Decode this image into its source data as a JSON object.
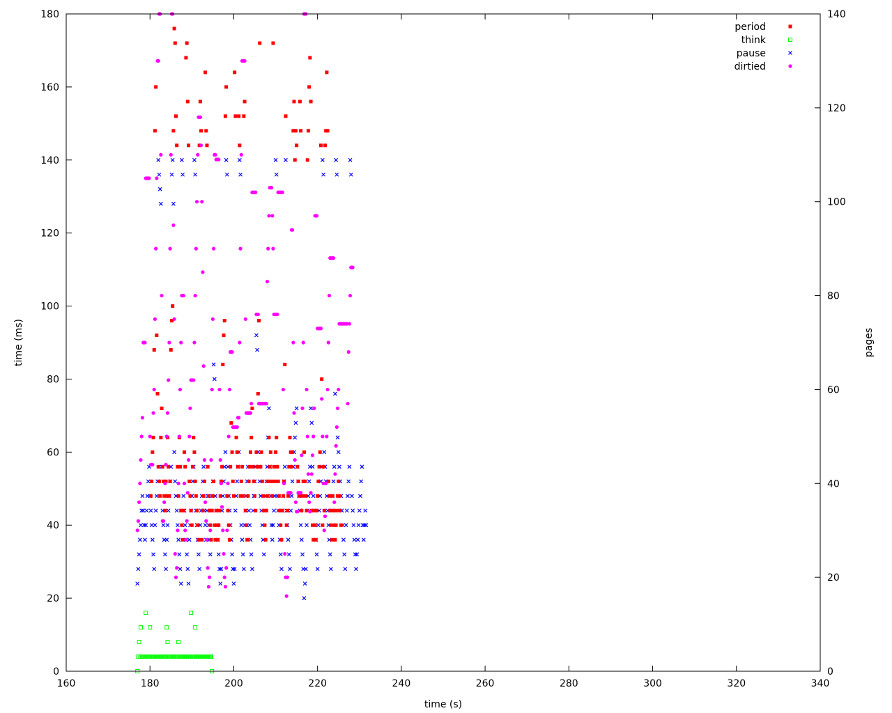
{
  "chart_data": {
    "type": "scatter",
    "xlabel": "time (s)",
    "ylabel": "time (ms)",
    "y2label": "pages",
    "xlim": [
      160,
      340
    ],
    "ylim": [
      0,
      180
    ],
    "y2lim": [
      0,
      140
    ],
    "xticks": [
      160,
      180,
      200,
      220,
      240,
      260,
      280,
      300,
      320,
      340
    ],
    "yticks": [
      0,
      20,
      40,
      60,
      80,
      100,
      120,
      140,
      160,
      180
    ],
    "y2ticks": [
      0,
      20,
      40,
      60,
      80,
      100,
      120,
      140
    ],
    "grid": false,
    "legend_position": "top-right",
    "x_step": 0.2,
    "series": [
      {
        "name": "period",
        "axis": "y",
        "marker": "square",
        "color": "#ff0000",
        "x_start": 180.2,
        "y": [
          48,
          52,
          60,
          64,
          88,
          148,
          160,
          92,
          76,
          56,
          52,
          48,
          64,
          72,
          56,
          52,
          48,
          44,
          52,
          48,
          64,
          56,
          48,
          52,
          88,
          96,
          100,
          148,
          176,
          172,
          152,
          144,
          56,
          48,
          64,
          56,
          44,
          40,
          36,
          44,
          60,
          56,
          168,
          172,
          156,
          144,
          52,
          48,
          44,
          40,
          56,
          64,
          60,
          52,
          48,
          44,
          40,
          36,
          144,
          156,
          148,
          36,
          44,
          48,
          52,
          164,
          148,
          144,
          56,
          48,
          44,
          40,
          36,
          44,
          48,
          52,
          40,
          36,
          44,
          40,
          36,
          40,
          44,
          48,
          52,
          56,
          84,
          92,
          96,
          152,
          160,
          48,
          44,
          40,
          36,
          56,
          68,
          60,
          52,
          48,
          164,
          152,
          64,
          60,
          56,
          152,
          144,
          48,
          52,
          56,
          48,
          152,
          156,
          44,
          40,
          36,
          48,
          52,
          56,
          60,
          64,
          72,
          56,
          52,
          48,
          44,
          60,
          56,
          76,
          96,
          172,
          56,
          60,
          52,
          48,
          44,
          40,
          36,
          44,
          48,
          52,
          64,
          56,
          60,
          52,
          48,
          172,
          56,
          52,
          60,
          64,
          56,
          52,
          48,
          44,
          40,
          36,
          44,
          48,
          52,
          84,
          152,
          40,
          44,
          48,
          56,
          64,
          60,
          56,
          60,
          148,
          156,
          140,
          148,
          144,
          56,
          52,
          48,
          156,
          148,
          44,
          48,
          52,
          60,
          52,
          48,
          44,
          140,
          148,
          160,
          168,
          156,
          44,
          40,
          36,
          44,
          40,
          36,
          44,
          48,
          52,
          56,
          60,
          144,
          80,
          40,
          56,
          44,
          144,
          148,
          164,
          148,
          52,
          48,
          44,
          40,
          36,
          48,
          44,
          40,
          36,
          40,
          44,
          48,
          52,
          48,
          44,
          40
        ]
      },
      {
        "name": "think",
        "axis": "y",
        "marker": "open-square",
        "color": "#00ff00",
        "x_start": 177,
        "y": [
          0,
          4,
          8,
          4,
          12,
          4,
          4,
          4,
          4,
          4,
          16,
          4,
          4,
          4,
          4,
          12,
          4,
          4,
          4,
          4,
          4,
          4,
          4,
          4,
          4,
          4,
          4,
          4,
          4,
          4,
          4,
          4,
          4,
          4,
          4,
          12,
          8,
          4,
          4,
          4,
          4,
          4,
          4,
          4,
          4,
          4,
          4,
          4,
          4,
          8,
          4,
          4,
          4,
          4,
          4,
          4,
          4,
          4,
          4,
          4,
          4,
          4,
          4,
          4,
          16,
          4,
          4,
          4,
          4,
          12,
          4,
          4,
          4,
          4,
          4,
          4,
          4,
          4,
          4,
          4,
          4,
          4,
          4,
          4,
          4,
          4,
          4,
          4,
          4,
          0
        ]
      },
      {
        "name": "pause",
        "axis": "y",
        "marker": "x",
        "color": "#0000ff",
        "x_start": 177,
        "y": [
          24,
          28,
          32,
          36,
          40,
          44,
          48,
          44,
          40,
          36,
          40,
          44,
          48,
          52,
          56,
          48,
          44,
          40,
          36,
          32,
          28,
          40,
          44,
          48,
          52,
          140,
          136,
          132,
          128,
          56,
          44,
          40,
          36,
          32,
          28,
          36,
          40,
          44,
          48,
          52,
          56,
          136,
          140,
          128,
          60,
          52,
          48,
          44,
          40,
          36,
          32,
          28,
          24,
          140,
          136,
          48,
          44,
          40,
          36,
          32,
          28,
          24,
          36,
          40,
          44,
          48,
          52,
          56,
          140,
          136,
          44,
          40,
          36,
          32,
          28,
          40,
          44,
          48,
          52,
          56,
          44,
          40,
          36,
          44,
          48,
          40,
          36,
          32,
          44,
          48,
          52,
          84,
          80,
          48,
          44,
          40,
          36,
          32,
          28,
          24,
          28,
          44,
          48,
          52,
          56,
          60,
          140,
          136,
          56,
          48,
          44,
          40,
          36,
          32,
          28,
          24,
          28,
          44,
          48,
          52,
          56,
          60,
          140,
          136,
          40,
          36,
          32,
          28,
          40,
          44,
          48,
          52,
          56,
          44,
          40,
          36,
          32,
          28,
          44,
          48,
          52,
          56,
          92,
          88,
          60,
          56,
          52,
          48,
          44,
          40,
          36,
          32,
          44,
          48,
          52,
          56,
          64,
          72,
          56,
          48,
          40,
          36,
          40,
          44,
          48,
          140,
          136,
          48,
          44,
          40,
          36,
          32,
          28,
          44,
          48,
          52,
          56,
          140,
          44,
          40,
          36,
          32,
          28,
          44,
          48,
          52,
          56,
          60,
          64,
          68,
          72,
          56,
          52,
          48,
          44,
          40,
          36,
          32,
          28,
          20,
          24,
          28,
          40,
          44,
          48,
          52,
          56,
          72,
          68,
          56,
          48,
          44,
          40,
          36,
          32,
          28,
          40,
          44,
          48,
          52,
          56,
          140,
          136,
          60,
          56,
          52,
          48,
          44,
          40,
          36,
          32,
          28,
          44,
          48,
          52,
          56,
          76,
          140,
          136,
          64,
          60,
          56,
          52,
          48,
          44,
          40,
          36,
          32,
          28,
          40,
          44,
          48,
          52,
          56,
          140,
          136,
          48,
          44,
          40,
          36,
          32,
          28,
          32,
          36,
          40,
          44,
          48,
          52,
          56,
          40,
          36,
          40,
          44,
          40
        ]
      },
      {
        "name": "dirtied",
        "axis": "y2",
        "marker": "dot",
        "color": "#ff00ff",
        "x_start": 177,
        "y": [
          30,
          32,
          36,
          40,
          45,
          50,
          54,
          70,
          70,
          70,
          105,
          105,
          105,
          105,
          105,
          50,
          44,
          44,
          44,
          55,
          60,
          75,
          90,
          105,
          130,
          130,
          140,
          140,
          110,
          80,
          32,
          32,
          36,
          40,
          44,
          50,
          55,
          62,
          70,
          90,
          110,
          140,
          140,
          95,
          75,
          25,
          20,
          22,
          30,
          40,
          50,
          60,
          70,
          80,
          80,
          80,
          40,
          30,
          28,
          32,
          38,
          45,
          50,
          56,
          62,
          62,
          62,
          62,
          70,
          80,
          90,
          100,
          110,
          118,
          118,
          118,
          112,
          100,
          85,
          65,
          45,
          36,
          32,
          28,
          22,
          18,
          20,
          30,
          45,
          60,
          75,
          90,
          110,
          110,
          109,
          109,
          109,
          109,
          60,
          45,
          40,
          35,
          30,
          25,
          20,
          18,
          22,
          30,
          40,
          50,
          60,
          68,
          68,
          68,
          52,
          52,
          52,
          52,
          52,
          52,
          54,
          54,
          70,
          90,
          110,
          130,
          130,
          130,
          130,
          75,
          55,
          55,
          55,
          55,
          55,
          55,
          57,
          102,
          102,
          102,
          102,
          102,
          76,
          76,
          76,
          57,
          57,
          57,
          57,
          57,
          57,
          57,
          57,
          57,
          57,
          83,
          90,
          97,
          103,
          103,
          103,
          97,
          90,
          76,
          76,
          76,
          76,
          76,
          102,
          102,
          102,
          102,
          102,
          102,
          60,
          40,
          25,
          20,
          16,
          20,
          38,
          38,
          38,
          38,
          94,
          94,
          70,
          55,
          45,
          36,
          34,
          34,
          38,
          38,
          38,
          38,
          46,
          56,
          70,
          140,
          140,
          140,
          60,
          50,
          42,
          36,
          34,
          38,
          42,
          46,
          50,
          56,
          97,
          97,
          97,
          73,
          73,
          73,
          73,
          73,
          58,
          50,
          40,
          30,
          33,
          40,
          50,
          60,
          70,
          80,
          88,
          88,
          88,
          88,
          88,
          36,
          42,
          48,
          52,
          56,
          60,
          74,
          74,
          74,
          74,
          74,
          74,
          74,
          74,
          74,
          74,
          57,
          68,
          74,
          80,
          86,
          86,
          86
        ]
      }
    ]
  }
}
